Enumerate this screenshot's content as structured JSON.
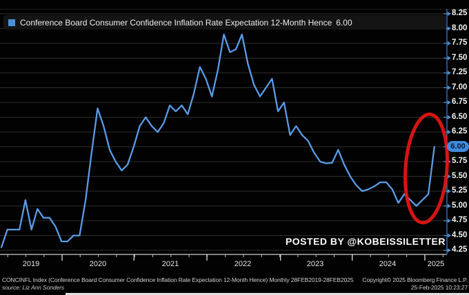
{
  "legend": {
    "label": "Conference Board Consumer Confidence Inflation Rate Expectation 12-Month Hence",
    "value": "6.00",
    "swatch_color": "#4a90d9"
  },
  "watermark": "POSTED BY @KOBEISSILETTER",
  "last_value_pill": "6.00",
  "annotation": {
    "shape": "ellipse",
    "color": "#e01515",
    "meaning": "highlights Feb-2025 spike to 6.00"
  },
  "axis": {
    "y_ticks": [
      "8.25",
      "8.00",
      "7.75",
      "7.50",
      "7.25",
      "7.00",
      "6.75",
      "6.50",
      "6.25",
      "6.00",
      "5.75",
      "5.50",
      "5.25",
      "5.00",
      "4.75",
      "4.50",
      "4.25"
    ],
    "x_years": [
      "2019",
      "2020",
      "2021",
      "2022",
      "2023",
      "2024",
      "2025"
    ]
  },
  "footer": {
    "line1_left": "CONCINFL Index (Conference Board Consumer Confidence Inflation Rate Expectation 12-Month Hence)  Monthly 28FEB2019-28FEB2025",
    "line1_right": "Copyright© 2025 Bloomberg Finance L.P.",
    "line2_left": "source: Liz Ann Sonders",
    "line2_right": "25-Feb-2025 10:23:27"
  },
  "chart_data": {
    "type": "line",
    "title": "Conference Board Consumer Confidence Inflation Rate Expectation 12-Month Hence",
    "frequency": "monthly",
    "x_start": "2019-02",
    "x_end": "2025-02",
    "x": [
      "2019-02",
      "2019-03",
      "2019-04",
      "2019-05",
      "2019-06",
      "2019-07",
      "2019-08",
      "2019-09",
      "2019-10",
      "2019-11",
      "2019-12",
      "2020-01",
      "2020-02",
      "2020-03",
      "2020-04",
      "2020-05",
      "2020-06",
      "2020-07",
      "2020-08",
      "2020-09",
      "2020-10",
      "2020-11",
      "2020-12",
      "2021-01",
      "2021-02",
      "2021-03",
      "2021-04",
      "2021-05",
      "2021-06",
      "2021-07",
      "2021-08",
      "2021-09",
      "2021-10",
      "2021-11",
      "2021-12",
      "2022-01",
      "2022-02",
      "2022-03",
      "2022-04",
      "2022-05",
      "2022-06",
      "2022-07",
      "2022-08",
      "2022-09",
      "2022-10",
      "2022-11",
      "2022-12",
      "2023-01",
      "2023-02",
      "2023-03",
      "2023-04",
      "2023-05",
      "2023-06",
      "2023-07",
      "2023-08",
      "2023-09",
      "2023-10",
      "2023-11",
      "2023-12",
      "2024-01",
      "2024-02",
      "2024-03",
      "2024-04",
      "2024-05",
      "2024-06",
      "2024-07",
      "2024-08",
      "2024-09",
      "2024-10",
      "2024-11",
      "2024-12",
      "2025-01",
      "2025-02"
    ],
    "values": [
      4.3,
      4.6,
      4.6,
      4.6,
      5.1,
      4.6,
      4.95,
      4.8,
      4.8,
      4.65,
      4.4,
      4.4,
      4.5,
      4.5,
      5.1,
      5.9,
      6.65,
      6.35,
      5.95,
      5.75,
      5.6,
      5.7,
      6.0,
      6.35,
      6.5,
      6.35,
      6.25,
      6.4,
      6.7,
      6.6,
      6.7,
      6.55,
      6.9,
      7.35,
      7.15,
      6.85,
      7.3,
      7.9,
      7.6,
      7.65,
      7.9,
      7.4,
      7.05,
      6.85,
      7.0,
      7.15,
      6.6,
      6.75,
      6.2,
      6.35,
      6.2,
      6.1,
      5.9,
      5.75,
      5.72,
      5.73,
      5.95,
      5.7,
      5.5,
      5.35,
      5.25,
      5.28,
      5.33,
      5.4,
      5.4,
      5.28,
      5.05,
      5.2,
      5.1,
      5.0,
      5.1,
      5.2,
      6.0
    ],
    "last_value": 6.0,
    "ylim": [
      4.25,
      8.25
    ],
    "y_tick_step": 0.25,
    "grid": true,
    "line_color": "#5a9ce8",
    "background": "#000000",
    "legend_position": "top-left",
    "annotations": [
      {
        "type": "ellipse-highlight",
        "color": "#e01515",
        "target": "2024 dip and Feb-2025 jump to 6.00"
      },
      {
        "type": "text",
        "text": "POSTED BY @KOBEISSILETTER"
      }
    ]
  }
}
